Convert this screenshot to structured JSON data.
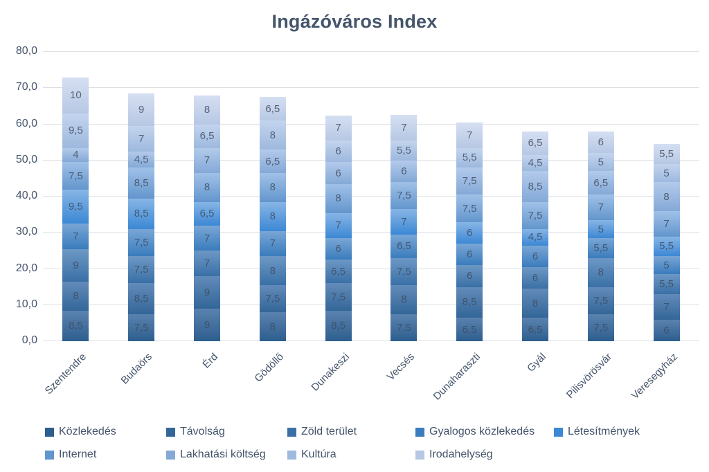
{
  "title": "Ingázóváros Index",
  "chart_data": {
    "type": "bar",
    "stacked": true,
    "title": "Ingázóváros Index",
    "categories": [
      "Szentendre",
      "Budaörs",
      "Érd",
      "Gödöllő",
      "Dunakeszi",
      "Vecsés",
      "Dunaharaszti",
      "Gyál",
      "Pilisvörösvár",
      "Veresegyház"
    ],
    "series": [
      {
        "name": "Közlekedés",
        "color": "#2d5e8e",
        "color_light": "#5a82af",
        "values": [
          8.5,
          7.5,
          9,
          8,
          8.5,
          7.5,
          6.5,
          6.5,
          7.5,
          6
        ]
      },
      {
        "name": "Távolság",
        "color": "#336698",
        "color_light": "#628bba",
        "values": [
          8,
          8.5,
          9,
          7.5,
          7.5,
          8,
          8.5,
          8,
          7.5,
          7
        ]
      },
      {
        "name": "Zöld terület",
        "color": "#3a70a6",
        "color_light": "#6d98c5",
        "values": [
          9,
          7.5,
          7,
          8,
          6.5,
          7.5,
          6,
          6,
          8,
          5.5
        ]
      },
      {
        "name": "Gyalogos közlekedés",
        "color": "#3a7cbd",
        "color_light": "#79a6d5",
        "values": [
          7,
          7.5,
          7,
          7,
          6,
          6.5,
          6,
          6,
          5.5,
          5
        ]
      },
      {
        "name": "Létesítmények",
        "color": "#3c88d5",
        "color_light": "#87b5e5",
        "values": [
          9.5,
          8.5,
          6.5,
          8,
          7,
          7,
          6,
          4.5,
          5,
          5.5
        ]
      },
      {
        "name": "Internet",
        "color": "#6396cd",
        "color_light": "#a0c1e8",
        "values": [
          7.5,
          8.5,
          8,
          8,
          8,
          7.5,
          7.5,
          7.5,
          7,
          7
        ]
      },
      {
        "name": "Lakhatási költség",
        "color": "#84a9d7",
        "color_light": "#b3caeb",
        "values": [
          4,
          4.5,
          7,
          6.5,
          6,
          6,
          7.5,
          8.5,
          6.5,
          8
        ]
      },
      {
        "name": "Kultúra",
        "color": "#9db9de",
        "color_light": "#c3d4ee",
        "values": [
          9.5,
          7,
          6.5,
          8,
          6,
          5.5,
          5.5,
          4.5,
          5,
          5
        ]
      },
      {
        "name": "Irodahelység",
        "color": "#b7c8e4",
        "color_light": "#d5dff2",
        "values": [
          10,
          9,
          8,
          6.5,
          7,
          7,
          7,
          6.5,
          6,
          5.5
        ]
      }
    ],
    "totals": [
      73,
      68.5,
      68,
      67.5,
      62.5,
      62.5,
      60.5,
      58,
      58,
      54.5
    ],
    "ylim": [
      0,
      80
    ],
    "ytick_step": 10,
    "ytick_labels": [
      "0,0",
      "10,0",
      "20,0",
      "30,0",
      "40,0",
      "50,0",
      "60,0",
      "70,0",
      "80,0"
    ],
    "grid": true,
    "value_labels": true,
    "legend_position": "bottom",
    "legend_rows": [
      [
        0,
        1,
        2,
        3,
        4
      ],
      [
        5,
        6,
        7,
        8
      ]
    ]
  },
  "colors": {
    "title_text": "#44546a",
    "axis_text": "#44546a",
    "gridline": "#dcdfe4",
    "background": "#ffffff",
    "value_label_text": "#3e4a5e"
  }
}
